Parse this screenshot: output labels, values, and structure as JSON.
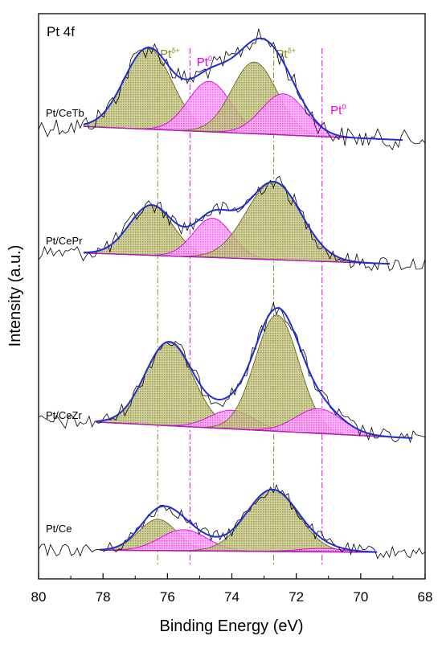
{
  "chart_data": {
    "type": "line",
    "panel_label": "Pt 4f",
    "xlabel": "Binding Energy (eV)",
    "ylabel": "Intensity (a.u.)",
    "xlim": [
      80,
      68
    ],
    "x_reversed": true,
    "x_ticks": [
      {
        "value": 80,
        "label": "80"
      },
      {
        "value": 78,
        "label": "78"
      },
      {
        "value": 76,
        "label": "76"
      },
      {
        "value": 74,
        "label": "74"
      },
      {
        "value": 72,
        "label": "72"
      },
      {
        "value": 70,
        "label": "70"
      },
      {
        "value": 68,
        "label": "68"
      }
    ],
    "y_ticks_shown": false,
    "grid": false,
    "reference_lines": [
      {
        "x": 76.3,
        "label": "Pt",
        "sup": "δ+",
        "color": "#8c8c1e"
      },
      {
        "x": 75.3,
        "label": "Pt",
        "sup": "0",
        "color": "#e600e6"
      },
      {
        "x": 72.7,
        "label": "Pt",
        "sup": "δ+",
        "color": "#8c8c1e"
      },
      {
        "x": 71.2,
        "label": "Pt",
        "sup": "0",
        "color": "#e600e6"
      }
    ],
    "colors": {
      "raw": "#000000",
      "envelope": "#1f2fd0",
      "pt_delta_fill": "#9a9a3c",
      "pt_delta_line": "#6b6b1a",
      "pt0_fill": "#ff33ff",
      "pt0_line": "#dd00dd",
      "background": "#008000"
    },
    "series": [
      {
        "name": "Pt/CeTb",
        "x_range": [
          78.6,
          68.7
        ],
        "baseline": [
          0.93,
          0.42
        ],
        "components": [
          {
            "state": "Pt δ+",
            "center": 76.6,
            "height": 3.05,
            "fwhm": 1.75
          },
          {
            "state": "Pt 0",
            "center": 74.7,
            "height": 1.9,
            "fwhm": 1.55
          },
          {
            "state": "Pt δ+",
            "center": 73.3,
            "height": 2.7,
            "fwhm": 1.65
          },
          {
            "state": "Pt 0",
            "center": 72.4,
            "height": 1.55,
            "fwhm": 1.6
          }
        ]
      },
      {
        "name": "Pt/CePr",
        "x_range": [
          78.6,
          69.1
        ],
        "baseline": [
          0.92,
          0.41
        ],
        "components": [
          {
            "state": "Pt δ+",
            "center": 76.5,
            "height": 2.35,
            "fwhm": 1.6
          },
          {
            "state": "Pt 0",
            "center": 74.6,
            "height": 1.85,
            "fwhm": 1.4
          },
          {
            "state": "Pt δ+",
            "center": 72.7,
            "height": 3.65,
            "fwhm": 2.0
          }
        ]
      },
      {
        "name": "Pt/CeZr",
        "x_range": [
          78.2,
          68.4
        ],
        "baseline": [
          0.82,
          0.0
        ],
        "components": [
          {
            "state": "Pt δ+",
            "center": 75.95,
            "height": 4.25,
            "fwhm": 1.75
          },
          {
            "state": "Pt 0",
            "center": 74.0,
            "height": 0.95,
            "fwhm": 1.6
          },
          {
            "state": "Pt δ+",
            "center": 72.6,
            "height": 5.9,
            "fwhm": 1.6
          },
          {
            "state": "Pt 0",
            "center": 71.3,
            "height": 1.25,
            "fwhm": 1.7
          }
        ]
      },
      {
        "name": "Pt/Ce",
        "x_range": [
          78.1,
          69.5
        ],
        "baseline": [
          0.18,
          0.05
        ],
        "components": [
          {
            "state": "Pt δ+",
            "center": 76.3,
            "height": 1.85,
            "fwhm": 1.4
          },
          {
            "state": "Pt 0",
            "center": 75.5,
            "height": 1.25,
            "fwhm": 1.7
          },
          {
            "state": "Pt δ+",
            "center": 72.75,
            "height": 3.65,
            "fwhm": 1.9
          },
          {
            "state": "Pt 0",
            "center": 71.2,
            "height": 0.2,
            "fwhm": 1.7
          }
        ]
      }
    ]
  }
}
